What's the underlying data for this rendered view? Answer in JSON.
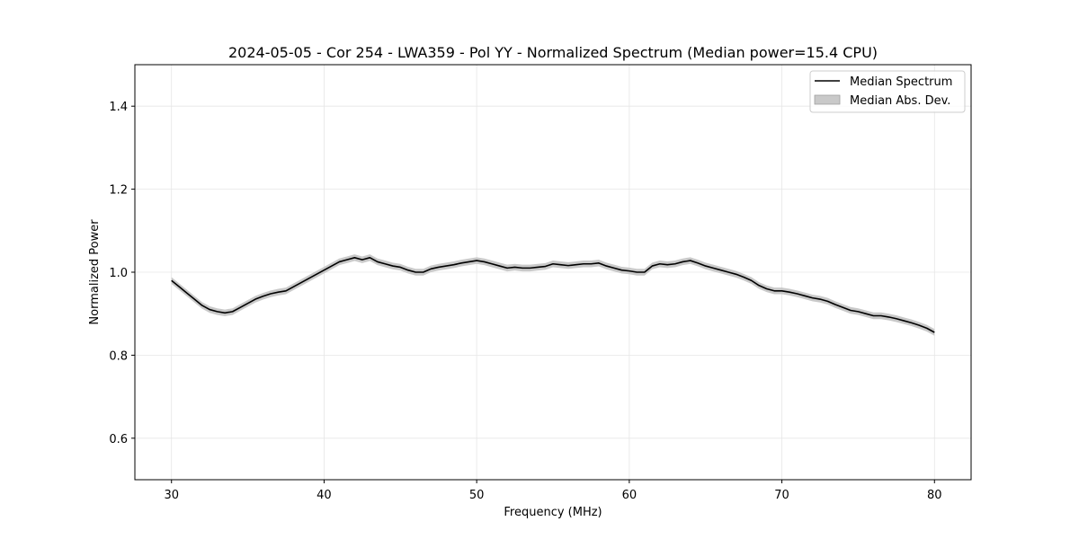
{
  "chart_data": {
    "type": "line",
    "title": "2024-05-05 - Cor 254 - LWA359 - Pol YY - Normalized Spectrum (Median power=15.4 CPU)",
    "xlabel": "Frequency (MHz)",
    "ylabel": "Normalized Power",
    "xlim": [
      27.6,
      82.4
    ],
    "ylim": [
      0.5,
      1.5
    ],
    "xticks": [
      30,
      40,
      50,
      60,
      70,
      80
    ],
    "yticks": [
      0.6,
      0.8,
      1.0,
      1.2,
      1.4
    ],
    "xtick_labels": [
      "30",
      "40",
      "50",
      "60",
      "70",
      "80"
    ],
    "ytick_labels": [
      "0.6",
      "0.8",
      "1.0",
      "1.2",
      "1.4"
    ],
    "grid": true,
    "legend_position": "top-right",
    "series": [
      {
        "name": "Median Spectrum",
        "color": "#000000",
        "x": [
          30.0,
          30.5,
          31.0,
          31.5,
          32.0,
          32.5,
          33.0,
          33.5,
          34.0,
          34.5,
          35.0,
          35.5,
          36.0,
          36.5,
          37.0,
          37.5,
          38.0,
          38.5,
          39.0,
          39.5,
          40.0,
          40.5,
          41.0,
          41.5,
          42.0,
          42.5,
          43.0,
          43.5,
          44.0,
          44.5,
          45.0,
          45.5,
          46.0,
          46.5,
          47.0,
          47.5,
          48.0,
          48.5,
          49.0,
          49.5,
          50.0,
          50.5,
          51.0,
          51.5,
          52.0,
          52.5,
          53.0,
          53.5,
          54.0,
          54.5,
          55.0,
          55.5,
          56.0,
          56.5,
          57.0,
          57.5,
          58.0,
          58.5,
          59.0,
          59.5,
          60.0,
          60.5,
          61.0,
          61.5,
          62.0,
          62.5,
          63.0,
          63.5,
          64.0,
          64.5,
          65.0,
          65.5,
          66.0,
          66.5,
          67.0,
          67.5,
          68.0,
          68.5,
          69.0,
          69.5,
          70.0,
          70.5,
          71.0,
          71.5,
          72.0,
          72.5,
          73.0,
          73.5,
          74.0,
          74.5,
          75.0,
          75.5,
          76.0,
          76.5,
          77.0,
          77.5,
          78.0,
          78.5,
          79.0,
          79.5,
          80.0
        ],
        "values": [
          0.98,
          0.965,
          0.95,
          0.935,
          0.92,
          0.91,
          0.905,
          0.902,
          0.905,
          0.915,
          0.925,
          0.935,
          0.942,
          0.948,
          0.952,
          0.955,
          0.965,
          0.975,
          0.985,
          0.995,
          1.005,
          1.015,
          1.025,
          1.03,
          1.035,
          1.03,
          1.035,
          1.025,
          1.02,
          1.015,
          1.012,
          1.005,
          1.0,
          1.0,
          1.008,
          1.012,
          1.015,
          1.018,
          1.022,
          1.025,
          1.028,
          1.025,
          1.02,
          1.015,
          1.01,
          1.012,
          1.01,
          1.01,
          1.012,
          1.014,
          1.02,
          1.018,
          1.016,
          1.018,
          1.02,
          1.02,
          1.022,
          1.015,
          1.01,
          1.005,
          1.003,
          1.0,
          1.0,
          1.015,
          1.02,
          1.018,
          1.02,
          1.025,
          1.028,
          1.022,
          1.015,
          1.01,
          1.005,
          1.0,
          0.995,
          0.988,
          0.98,
          0.968,
          0.96,
          0.955,
          0.955,
          0.952,
          0.948,
          0.943,
          0.938,
          0.935,
          0.93,
          0.922,
          0.915,
          0.908,
          0.905,
          0.9,
          0.895,
          0.895,
          0.892,
          0.888,
          0.883,
          0.878,
          0.872,
          0.865,
          0.855
        ]
      },
      {
        "name": "Median Abs. Dev.",
        "color": "#bfbfbf",
        "mad": 0.008
      }
    ]
  }
}
